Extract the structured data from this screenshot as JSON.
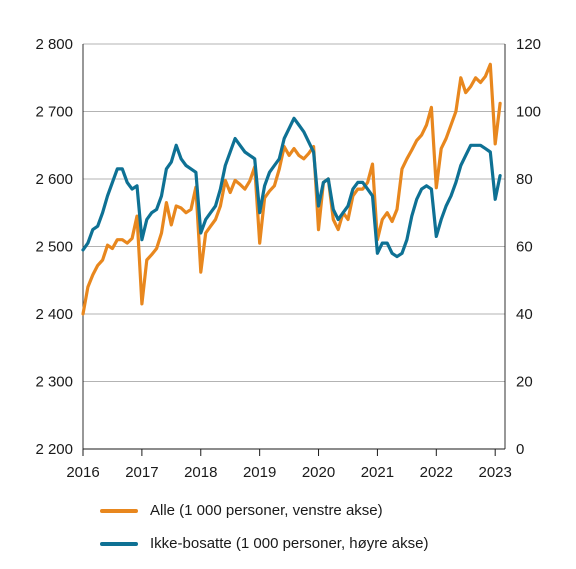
{
  "chart_data": {
    "type": "line",
    "title": "",
    "xlabel": "",
    "x_ticks": [
      "2016",
      "2017",
      "2018",
      "2019",
      "2020",
      "2021",
      "2022",
      "2023"
    ],
    "xlim": [
      "2016-01",
      "2023-03"
    ],
    "y_left": {
      "min": 2200,
      "max": 2800,
      "step": 100,
      "tick_labels": [
        "2 200",
        "2 300",
        "2 400",
        "2 500",
        "2 600",
        "2 700",
        "2 800"
      ]
    },
    "y_right": {
      "min": 0,
      "max": 120,
      "step": 20,
      "tick_labels": [
        "0",
        "20",
        "40",
        "60",
        "80",
        "100",
        "120"
      ]
    },
    "grid": "horizontal",
    "legend_position": "bottom",
    "series": [
      {
        "name": "Alle (1 000 personer, venstre akse)",
        "axis": "left",
        "color": "#e8871e",
        "x": [
          "2016-01",
          "2016-02",
          "2016-03",
          "2016-04",
          "2016-05",
          "2016-06",
          "2016-07",
          "2016-08",
          "2016-09",
          "2016-10",
          "2016-11",
          "2016-12",
          "2017-01",
          "2017-02",
          "2017-03",
          "2017-04",
          "2017-05",
          "2017-06",
          "2017-07",
          "2017-08",
          "2017-09",
          "2017-10",
          "2017-11",
          "2017-12",
          "2018-01",
          "2018-02",
          "2018-03",
          "2018-04",
          "2018-05",
          "2018-06",
          "2018-07",
          "2018-08",
          "2018-09",
          "2018-10",
          "2018-11",
          "2018-12",
          "2019-01",
          "2019-02",
          "2019-03",
          "2019-04",
          "2019-05",
          "2019-06",
          "2019-07",
          "2019-08",
          "2019-09",
          "2019-10",
          "2019-11",
          "2019-12",
          "2020-01",
          "2020-02",
          "2020-03",
          "2020-04",
          "2020-05",
          "2020-06",
          "2020-07",
          "2020-08",
          "2020-09",
          "2020-10",
          "2020-11",
          "2020-12",
          "2021-01",
          "2021-02",
          "2021-03",
          "2021-04",
          "2021-05",
          "2021-06",
          "2021-07",
          "2021-08",
          "2021-09",
          "2021-10",
          "2021-11",
          "2021-12",
          "2022-01",
          "2022-02",
          "2022-03",
          "2022-04",
          "2022-05",
          "2022-06",
          "2022-07",
          "2022-08",
          "2022-09",
          "2022-10",
          "2022-11",
          "2022-12",
          "2023-01",
          "2023-02"
        ],
        "values": [
          2400,
          2440,
          2458,
          2472,
          2480,
          2502,
          2497,
          2510,
          2510,
          2505,
          2512,
          2545,
          2415,
          2480,
          2488,
          2497,
          2520,
          2565,
          2532,
          2560,
          2557,
          2550,
          2555,
          2588,
          2462,
          2520,
          2530,
          2540,
          2560,
          2598,
          2580,
          2598,
          2592,
          2585,
          2597,
          2618,
          2505,
          2572,
          2582,
          2590,
          2615,
          2648,
          2635,
          2645,
          2635,
          2630,
          2638,
          2648,
          2525,
          2595,
          2600,
          2540,
          2525,
          2550,
          2540,
          2575,
          2585,
          2585,
          2595,
          2622,
          2510,
          2540,
          2550,
          2537,
          2555,
          2615,
          2630,
          2643,
          2657,
          2665,
          2680,
          2706,
          2587,
          2645,
          2660,
          2680,
          2700,
          2750,
          2728,
          2737,
          2750,
          2743,
          2752,
          2770,
          2652,
          2712
        ]
      },
      {
        "name": "Ikke-bosatte (1 000 personer, høyre akse)",
        "axis": "right",
        "color": "#0e7194",
        "x": [
          "2016-01",
          "2016-02",
          "2016-03",
          "2016-04",
          "2016-05",
          "2016-06",
          "2016-07",
          "2016-08",
          "2016-09",
          "2016-10",
          "2016-11",
          "2016-12",
          "2017-01",
          "2017-02",
          "2017-03",
          "2017-04",
          "2017-05",
          "2017-06",
          "2017-07",
          "2017-08",
          "2017-09",
          "2017-10",
          "2017-11",
          "2017-12",
          "2018-01",
          "2018-02",
          "2018-03",
          "2018-04",
          "2018-05",
          "2018-06",
          "2018-07",
          "2018-08",
          "2018-09",
          "2018-10",
          "2018-11",
          "2018-12",
          "2019-01",
          "2019-02",
          "2019-03",
          "2019-04",
          "2019-05",
          "2019-06",
          "2019-07",
          "2019-08",
          "2019-09",
          "2019-10",
          "2019-11",
          "2019-12",
          "2020-01",
          "2020-02",
          "2020-03",
          "2020-04",
          "2020-05",
          "2020-06",
          "2020-07",
          "2020-08",
          "2020-09",
          "2020-10",
          "2020-11",
          "2020-12",
          "2021-01",
          "2021-02",
          "2021-03",
          "2021-04",
          "2021-05",
          "2021-06",
          "2021-07",
          "2021-08",
          "2021-09",
          "2021-10",
          "2021-11",
          "2021-12",
          "2022-01",
          "2022-02",
          "2022-03",
          "2022-04",
          "2022-05",
          "2022-06",
          "2022-07",
          "2022-08",
          "2022-09",
          "2022-10",
          "2022-11",
          "2022-12",
          "2023-01",
          "2023-02"
        ],
        "values": [
          59,
          61,
          65,
          66,
          70,
          75,
          79,
          83,
          83,
          79,
          77,
          78,
          62,
          68,
          70,
          71,
          75,
          83,
          85,
          90,
          86,
          84,
          83,
          82,
          64,
          68,
          70,
          72,
          77,
          84,
          88,
          92,
          90,
          88,
          87,
          86,
          70,
          78,
          82,
          84,
          86,
          92,
          95,
          98,
          96,
          94,
          91,
          88,
          72,
          79,
          80,
          71,
          68,
          70,
          72,
          77,
          79,
          79,
          77,
          75,
          58,
          61,
          61,
          58,
          57,
          58,
          62,
          69,
          74,
          77,
          78,
          77,
          63,
          68,
          72,
          75,
          79,
          84,
          87,
          90,
          90,
          90,
          89,
          88,
          74,
          81
        ]
      }
    ]
  }
}
